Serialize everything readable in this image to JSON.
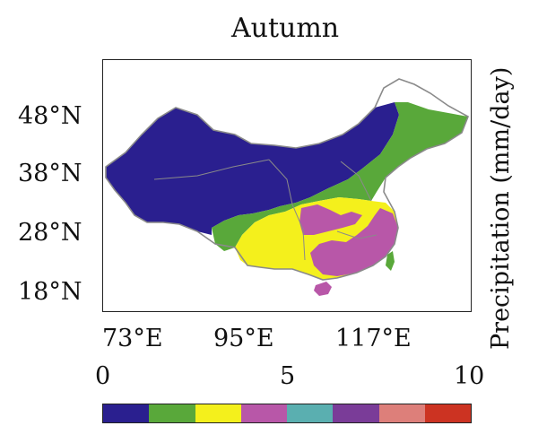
{
  "title": "Autumn",
  "side_label": "Precipitation (mm/day)",
  "lat_labels": [
    "48°N",
    "38°N",
    "28°N",
    "18°N"
  ],
  "lon_labels": [
    "73°E",
    "95°E",
    "117°E"
  ],
  "colorbar": {
    "ticks": [
      "0",
      "5",
      "10"
    ],
    "colors": [
      "#2a1f8f",
      "#59a83a",
      "#f4f01c",
      "#b857a8",
      "#5aafb0",
      "#7a3c98",
      "#dd7f7a",
      "#cc3322"
    ]
  },
  "regions": {
    "dry_northwest": "#2a1f8f",
    "moderate_north": "#59a83a",
    "yellow_south": "#f4f01c",
    "magenta_southeast": "#b857a8",
    "borders": "#8a8a8a"
  }
}
